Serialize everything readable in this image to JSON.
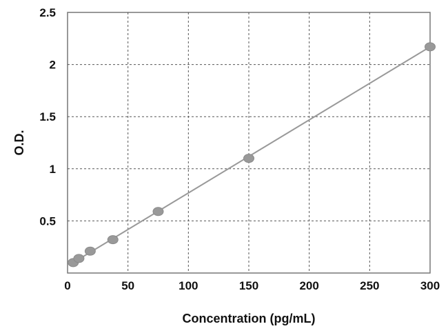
{
  "chart_data": {
    "type": "scatter",
    "title": "",
    "xlabel": "Concentration (pg/mL)",
    "ylabel": "O.D.",
    "xlim": [
      0,
      300
    ],
    "ylim": [
      0,
      2.5
    ],
    "x_ticks": [
      "0",
      "50",
      "100",
      "150",
      "200",
      "250",
      "300"
    ],
    "y_ticks": [
      "0.5",
      "1",
      "1.5",
      "2",
      "2.5"
    ],
    "grid": true,
    "legend": "none",
    "series": [
      {
        "x": [
          4.69,
          9.38,
          18.75,
          37.5,
          75,
          150,
          300
        ],
        "y": [
          0.1,
          0.14,
          0.21,
          0.32,
          0.59,
          1.1,
          2.17
        ]
      }
    ],
    "trendline": {
      "type": "linear",
      "from": [
        4.69,
        0.1
      ],
      "to": [
        300,
        2.17
      ]
    },
    "colors": {
      "marker": "#999999",
      "line": "#999999",
      "grid": "#555555",
      "frame": "#777777"
    }
  }
}
